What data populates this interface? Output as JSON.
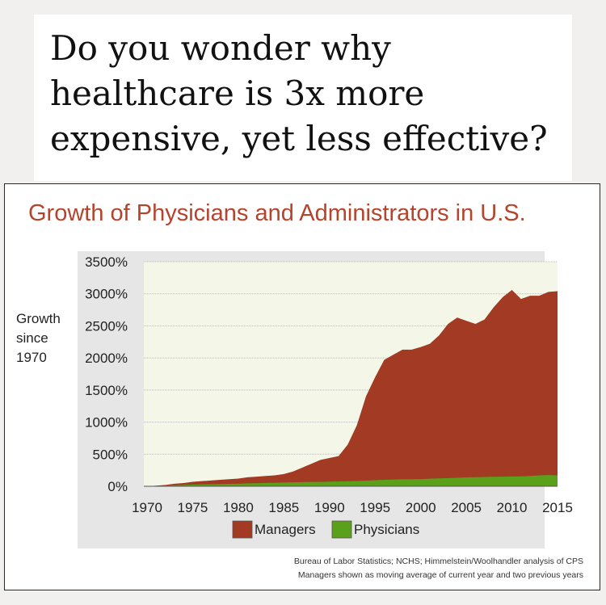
{
  "headline": "Do you wonder why healthcare is 3x more expensive, yet less effective?",
  "chart_data": {
    "type": "area",
    "title": "Growth of Physicians and Administrators in U.S.",
    "ylabel": [
      "Growth",
      "since",
      "1970"
    ],
    "xlabel": "",
    "x": [
      1970,
      1971,
      1972,
      1973,
      1974,
      1975,
      1976,
      1977,
      1978,
      1979,
      1980,
      1981,
      1982,
      1983,
      1984,
      1985,
      1986,
      1987,
      1988,
      1989,
      1990,
      1991,
      1992,
      1993,
      1994,
      1995,
      1996,
      1997,
      1998,
      1999,
      2000,
      2001,
      2002,
      2003,
      2004,
      2005,
      2006,
      2007,
      2008,
      2009,
      2010,
      2011,
      2012,
      2013,
      2014,
      2015
    ],
    "series": [
      {
        "name": "Managers",
        "color": "#a33a24",
        "values": [
          0,
          10,
          20,
          40,
          50,
          70,
          80,
          90,
          100,
          110,
          120,
          140,
          150,
          160,
          170,
          190,
          230,
          290,
          350,
          410,
          440,
          470,
          650,
          950,
          1400,
          1700,
          1970,
          2050,
          2130,
          2130,
          2170,
          2220,
          2350,
          2530,
          2630,
          2580,
          2530,
          2600,
          2790,
          2950,
          3060,
          2920,
          2970,
          2970,
          3030,
          3040
        ]
      },
      {
        "name": "Physicians",
        "color": "#5aa01a",
        "values": [
          0,
          5,
          10,
          15,
          20,
          25,
          28,
          32,
          35,
          38,
          40,
          45,
          48,
          52,
          55,
          58,
          62,
          65,
          68,
          70,
          72,
          75,
          78,
          82,
          88,
          95,
          100,
          105,
          108,
          110,
          112,
          118,
          122,
          128,
          132,
          138,
          142,
          145,
          148,
          150,
          152,
          155,
          160,
          170,
          175,
          170
        ]
      }
    ],
    "ylim": [
      0,
      3500
    ],
    "yticks": [
      "0%",
      "500%",
      "1000%",
      "1500%",
      "2000%",
      "2500%",
      "3000%",
      "3500%"
    ],
    "xticks": [
      "1970",
      "1975",
      "1980",
      "1985",
      "1990",
      "1995",
      "2000",
      "2005",
      "2010",
      "2015"
    ],
    "grid": true,
    "legend": "bottom",
    "source": [
      "Bureau of Labor Statistics; NCHS; Himmelstein/Woolhandler analysis of CPS",
      "Managers shown as moving average of current year and two previous years"
    ]
  }
}
